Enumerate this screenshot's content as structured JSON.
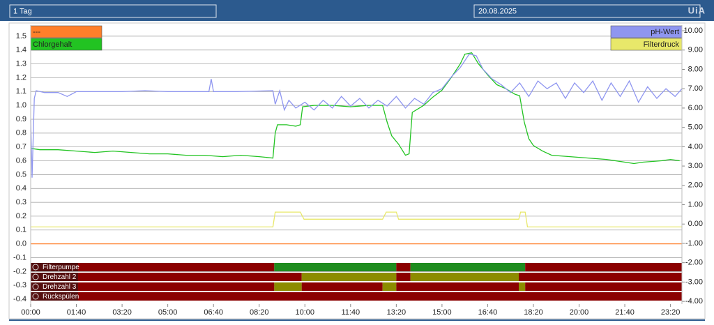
{
  "header": {
    "range": "1 Tag",
    "date": "20.08.2025",
    "logo": "UiA"
  },
  "chart_data": {
    "type": "line",
    "xlim": [
      0,
      1425
    ],
    "xticks": [
      {
        "value": 0,
        "label": "00:00"
      },
      {
        "value": 100,
        "label": "01:40"
      },
      {
        "value": 200,
        "label": "03:20"
      },
      {
        "value": 300,
        "label": "05:00"
      },
      {
        "value": 400,
        "label": "06:40"
      },
      {
        "value": 500,
        "label": "08:20"
      },
      {
        "value": 600,
        "label": "10:00"
      },
      {
        "value": 700,
        "label": "11:40"
      },
      {
        "value": 800,
        "label": "13:20"
      },
      {
        "value": 900,
        "label": "15:00"
      },
      {
        "value": 1000,
        "label": "16:40"
      },
      {
        "value": 1100,
        "label": "18:20"
      },
      {
        "value": 1200,
        "label": "20:00"
      },
      {
        "value": 1300,
        "label": "21:40"
      },
      {
        "value": 1400,
        "label": "23:20"
      }
    ],
    "ylim": [
      -0.435,
      1.58
    ],
    "yticks": [
      -0.4,
      -0.3,
      -0.2,
      -0.1,
      {
        "value": 0,
        "label": "0.0"
      },
      0.1,
      0.2,
      0.3,
      0.4,
      0.5,
      0.6,
      0.7,
      0.8,
      0.9,
      {
        "value": 1,
        "label": "1.0"
      },
      1.1,
      1.2,
      1.3,
      1.4,
      1.5
    ],
    "y2lim": [
      -4.14,
      10.29
    ],
    "y2ticks": [
      {
        "value": -4,
        "label": "-4.00"
      },
      {
        "value": -3,
        "label": "-3.00"
      },
      {
        "value": -2,
        "label": "-2.00"
      },
      {
        "value": -1,
        "label": "-1.00"
      },
      {
        "value": 0,
        "label": "0.00"
      },
      {
        "value": 1,
        "label": "1.00"
      },
      {
        "value": 2,
        "label": "2.00"
      },
      {
        "value": 3,
        "label": "3.00"
      },
      {
        "value": 4,
        "label": "4.00"
      },
      {
        "value": 5,
        "label": "5.00"
      },
      {
        "value": 6,
        "label": "6.00"
      },
      {
        "value": 7,
        "label": "7.00"
      },
      {
        "value": 8,
        "label": "8.00"
      },
      {
        "value": 9,
        "label": "9.00"
      },
      {
        "value": 10,
        "label": "10.00"
      }
    ],
    "grid": true,
    "series": [
      {
        "name": "---",
        "color": "#ff7f2a",
        "x": [
          0,
          1425
        ],
        "values": [
          0,
          0
        ]
      },
      {
        "name": "Chlorgehalt",
        "color": "#22c322",
        "x": [
          0,
          20,
          60,
          100,
          140,
          180,
          220,
          260,
          300,
          340,
          380,
          420,
          460,
          500,
          530,
          535,
          540,
          560,
          580,
          590,
          595,
          620,
          660,
          700,
          740,
          770,
          780,
          790,
          805,
          820,
          828,
          835,
          860,
          880,
          900,
          920,
          940,
          950,
          965,
          980,
          1000,
          1020,
          1040,
          1060,
          1070,
          1080,
          1090,
          1100,
          1120,
          1140,
          1180,
          1220,
          1260,
          1300,
          1320,
          1340,
          1380,
          1400,
          1420
        ],
        "values": [
          0.69,
          0.68,
          0.68,
          0.67,
          0.66,
          0.67,
          0.66,
          0.65,
          0.65,
          0.64,
          0.64,
          0.63,
          0.64,
          0.63,
          0.62,
          0.8,
          0.86,
          0.86,
          0.85,
          0.86,
          0.99,
          1.0,
          1.0,
          0.99,
          1.0,
          1.0,
          0.88,
          0.78,
          0.72,
          0.64,
          0.65,
          0.95,
          1.0,
          1.06,
          1.11,
          1.2,
          1.3,
          1.37,
          1.38,
          1.3,
          1.22,
          1.15,
          1.12,
          1.08,
          1.07,
          0.88,
          0.76,
          0.71,
          0.67,
          0.64,
          0.63,
          0.62,
          0.61,
          0.59,
          0.58,
          0.59,
          0.6,
          0.61,
          0.6
        ]
      },
      {
        "name": "pH-Wert",
        "color": "#8f96f0",
        "axis": "y2",
        "x": [
          0,
          3,
          8,
          12,
          30,
          60,
          80,
          100,
          200,
          250,
          300,
          390,
          395,
          400,
          450,
          530,
          535,
          545,
          555,
          565,
          580,
          600,
          620,
          640,
          660,
          680,
          700,
          720,
          740,
          760,
          780,
          800,
          820,
          840,
          860,
          880,
          900,
          920,
          940,
          960,
          975,
          990,
          1010,
          1030,
          1050,
          1070,
          1090,
          1110,
          1130,
          1150,
          1170,
          1190,
          1210,
          1230,
          1250,
          1270,
          1290,
          1310,
          1330,
          1350,
          1370,
          1390,
          1410,
          1425
        ],
        "values": [
          5.4,
          2.4,
          6.5,
          6.9,
          6.8,
          6.8,
          6.6,
          6.85,
          6.85,
          6.9,
          6.85,
          6.85,
          7.5,
          6.85,
          6.85,
          6.9,
          6.2,
          6.9,
          5.9,
          6.4,
          6.0,
          6.3,
          5.9,
          6.4,
          6.0,
          6.6,
          6.1,
          6.5,
          6.0,
          6.4,
          6.1,
          6.6,
          6.0,
          6.5,
          6.2,
          6.8,
          7.0,
          7.6,
          8.1,
          8.8,
          8.7,
          8.0,
          7.5,
          7.2,
          6.8,
          7.3,
          6.6,
          7.4,
          7.0,
          7.3,
          6.5,
          7.3,
          6.8,
          7.4,
          6.4,
          7.3,
          6.6,
          7.4,
          6.3,
          7.1,
          6.5,
          7.0,
          6.6,
          7.0
        ]
      },
      {
        "name": "Filterdruck",
        "color": "#e8e86a",
        "axis": "y2",
        "x": [
          0,
          530,
          535,
          590,
          598,
          770,
          778,
          800,
          805,
          1068,
          1072,
          1082,
          1087,
          1425
        ],
        "values": [
          -0.15,
          -0.15,
          0.62,
          0.62,
          0.25,
          0.25,
          0.62,
          0.62,
          0.25,
          0.25,
          0.62,
          0.62,
          -0.15,
          -0.15
        ]
      }
    ],
    "off_color": "#8b0000",
    "status_rows": [
      {
        "name": "Filterpumpe",
        "on_color": "#1f8c1f",
        "segments": [
          {
            "start": 0,
            "end": 533,
            "on": false
          },
          {
            "start": 533,
            "end": 800,
            "on": true
          },
          {
            "start": 800,
            "end": 831,
            "on": false
          },
          {
            "start": 831,
            "end": 1082,
            "on": true
          },
          {
            "start": 1082,
            "end": 1425,
            "on": false
          }
        ]
      },
      {
        "name": "Drehzahl 2",
        "on_color": "#8c8c00",
        "segments": [
          {
            "start": 0,
            "end": 593,
            "on": false
          },
          {
            "start": 593,
            "end": 800,
            "on": true
          },
          {
            "start": 800,
            "end": 831,
            "on": false
          },
          {
            "start": 831,
            "end": 1068,
            "on": true
          },
          {
            "start": 1068,
            "end": 1425,
            "on": false
          }
        ]
      },
      {
        "name": "Drehzahl 3",
        "on_color": "#8c8c00",
        "segments": [
          {
            "start": 0,
            "end": 533,
            "on": false
          },
          {
            "start": 533,
            "end": 593,
            "on": true
          },
          {
            "start": 593,
            "end": 770,
            "on": false
          },
          {
            "start": 770,
            "end": 800,
            "on": true
          },
          {
            "start": 800,
            "end": 1068,
            "on": false
          },
          {
            "start": 1068,
            "end": 1082,
            "on": true
          },
          {
            "start": 1082,
            "end": 1425,
            "on": false
          }
        ]
      },
      {
        "name": "Rückspülen",
        "on_color": "#8c8c00",
        "segments": [
          {
            "start": 0,
            "end": 1425,
            "on": false
          }
        ]
      }
    ]
  }
}
